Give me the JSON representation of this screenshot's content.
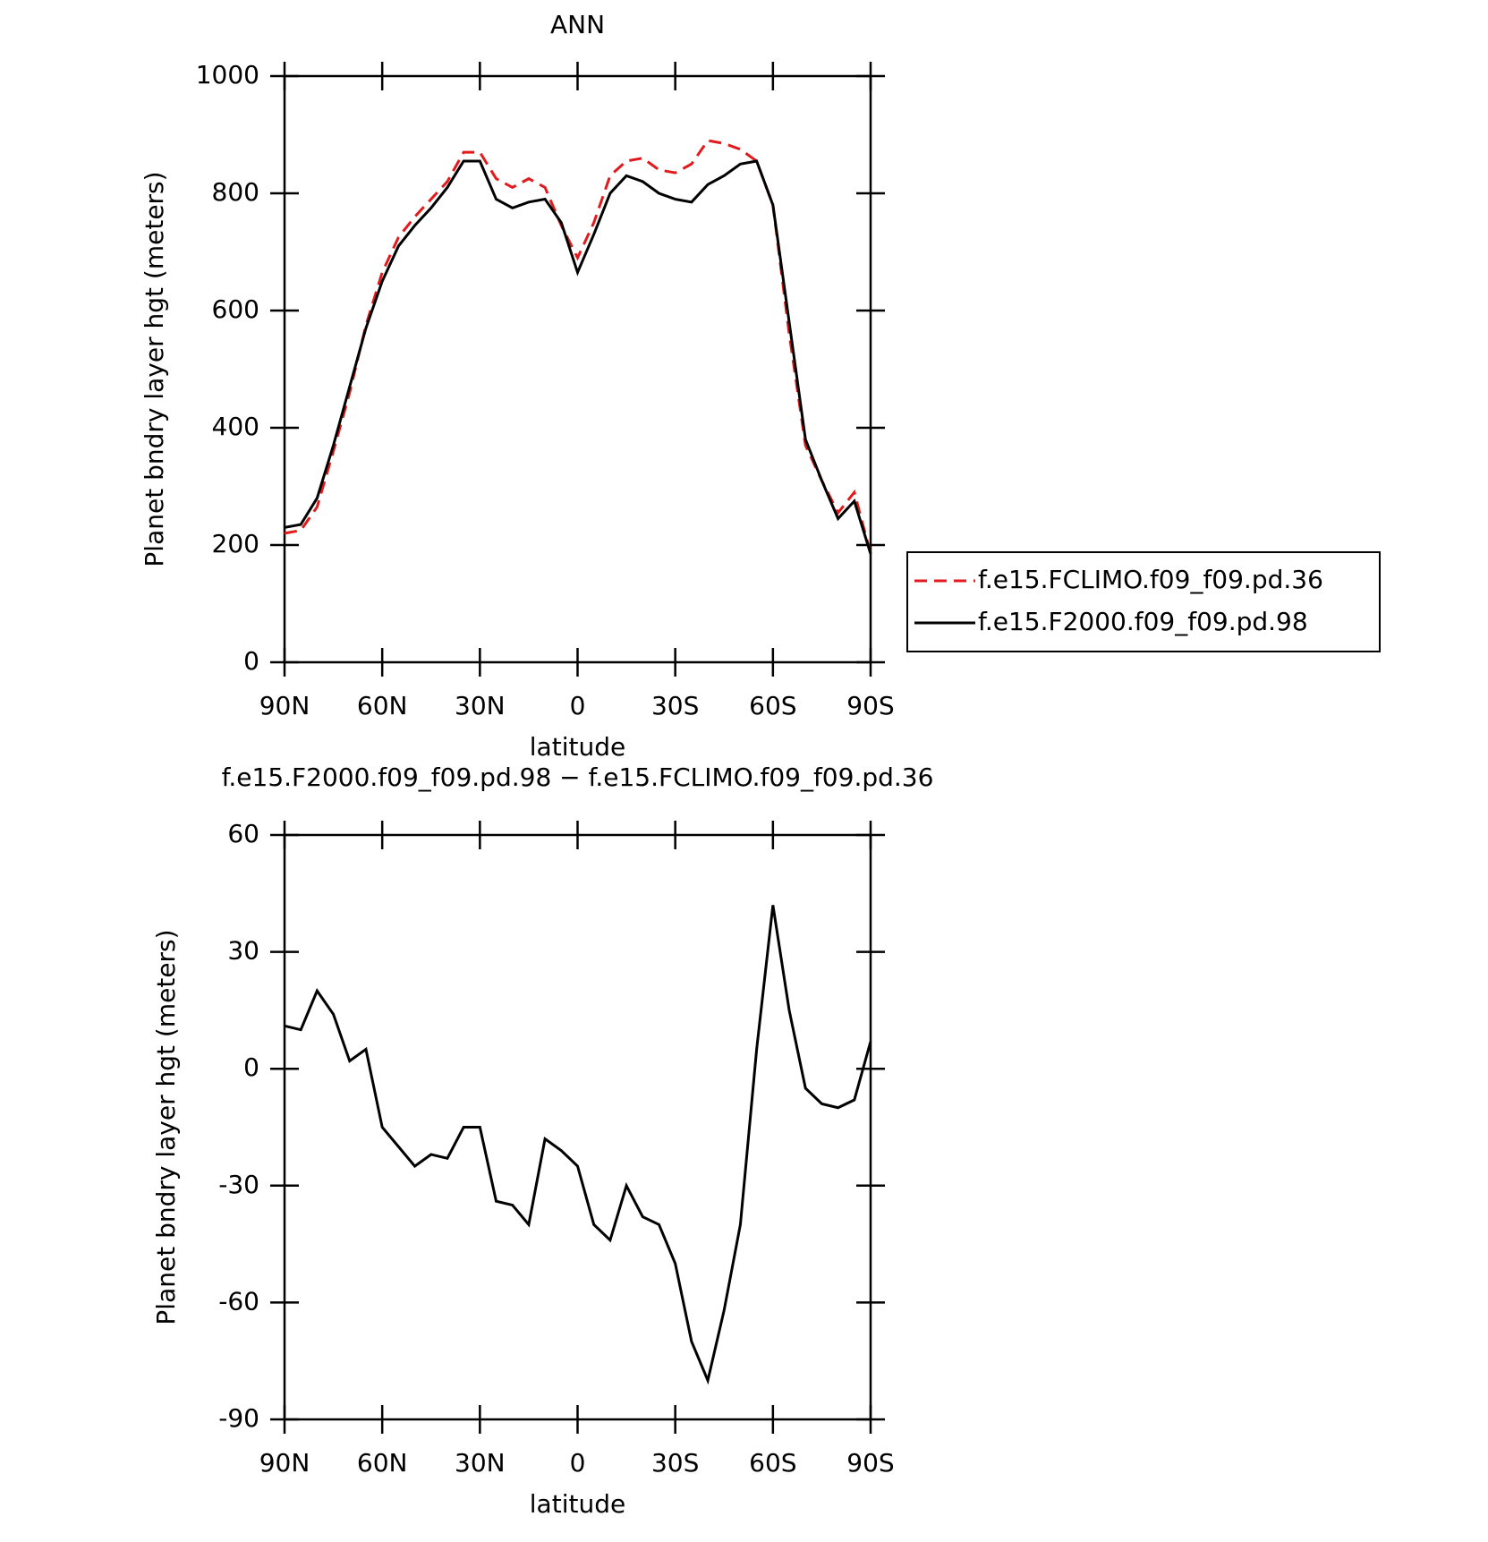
{
  "chart_data": [
    {
      "type": "line",
      "title": "ANN",
      "xlabel": "latitude",
      "ylabel": "Planet bndry layer hgt (meters)",
      "x": [
        90,
        85,
        80,
        75,
        70,
        65,
        60,
        55,
        50,
        45,
        40,
        35,
        30,
        25,
        20,
        15,
        10,
        5,
        0,
        -5,
        -10,
        -15,
        -20,
        -25,
        -30,
        -35,
        -40,
        -45,
        -50,
        -55,
        -60,
        -65,
        -70,
        -75,
        -80,
        -85,
        -90
      ],
      "series": [
        {
          "name": "f.e15.FCLIMO.f09_f09.pd.36",
          "color": "#e31a1c",
          "dash": true,
          "values": [
            220,
            225,
            265,
            360,
            460,
            575,
            665,
            725,
            760,
            790,
            820,
            870,
            870,
            825,
            810,
            825,
            810,
            745,
            690,
            750,
            830,
            855,
            860,
            840,
            835,
            850,
            890,
            885,
            875,
            855,
            780,
            560,
            370,
            310,
            255,
            290,
            185
          ]
        },
        {
          "name": "f.e15.F2000.f09_f09.pd.98",
          "color": "#000000",
          "dash": false,
          "values": [
            230,
            235,
            280,
            370,
            470,
            570,
            650,
            710,
            745,
            775,
            810,
            855,
            855,
            790,
            775,
            785,
            790,
            750,
            665,
            730,
            800,
            830,
            820,
            800,
            790,
            785,
            815,
            830,
            850,
            855,
            780,
            580,
            380,
            310,
            245,
            275,
            185
          ]
        }
      ],
      "xlim": [
        90,
        -90
      ],
      "xticks": [
        {
          "value": 90,
          "label": "90N"
        },
        {
          "value": 60,
          "label": "60N"
        },
        {
          "value": 30,
          "label": "30N"
        },
        0,
        {
          "value": -30,
          "label": "30S"
        },
        {
          "value": -60,
          "label": "60S"
        },
        {
          "value": -90,
          "label": "90S"
        }
      ],
      "ylim": [
        0,
        1000
      ],
      "yticks": [
        0,
        200,
        400,
        600,
        800,
        1000
      ],
      "legend": "right"
    },
    {
      "type": "line",
      "title": "f.e15.F2000.f09_f09.pd.98 − f.e15.FCLIMO.f09_f09.pd.36",
      "xlabel": "latitude",
      "ylabel": "Planet bndry layer hgt (meters)",
      "x": [
        90,
        85,
        80,
        75,
        70,
        65,
        60,
        55,
        50,
        45,
        40,
        35,
        30,
        25,
        20,
        15,
        10,
        5,
        0,
        -5,
        -10,
        -15,
        -20,
        -25,
        -30,
        -35,
        -40,
        -45,
        -50,
        -55,
        -60,
        -65,
        -70,
        -75,
        -80,
        -85,
        -90
      ],
      "values": [
        11,
        10,
        20,
        14,
        2,
        5,
        -15,
        -20,
        -25,
        -22,
        -23,
        -15,
        -15,
        -34,
        -35,
        -40,
        -18,
        -21,
        -25,
        -40,
        -44,
        -30,
        -38,
        -40,
        -50,
        -70,
        -80,
        -62,
        -40,
        5,
        42,
        15,
        -5,
        -9,
        -10,
        -8,
        7
      ],
      "color": "#000000",
      "xlim": [
        90,
        -90
      ],
      "xticks": [
        {
          "value": 90,
          "label": "90N"
        },
        {
          "value": 60,
          "label": "60N"
        },
        {
          "value": 30,
          "label": "30N"
        },
        0,
        {
          "value": -30,
          "label": "30S"
        },
        {
          "value": -60,
          "label": "60S"
        },
        {
          "value": -90,
          "label": "90S"
        }
      ],
      "ylim": [
        -90,
        60
      ],
      "yticks": [
        -90,
        -60,
        -30,
        0,
        30,
        60
      ]
    }
  ]
}
